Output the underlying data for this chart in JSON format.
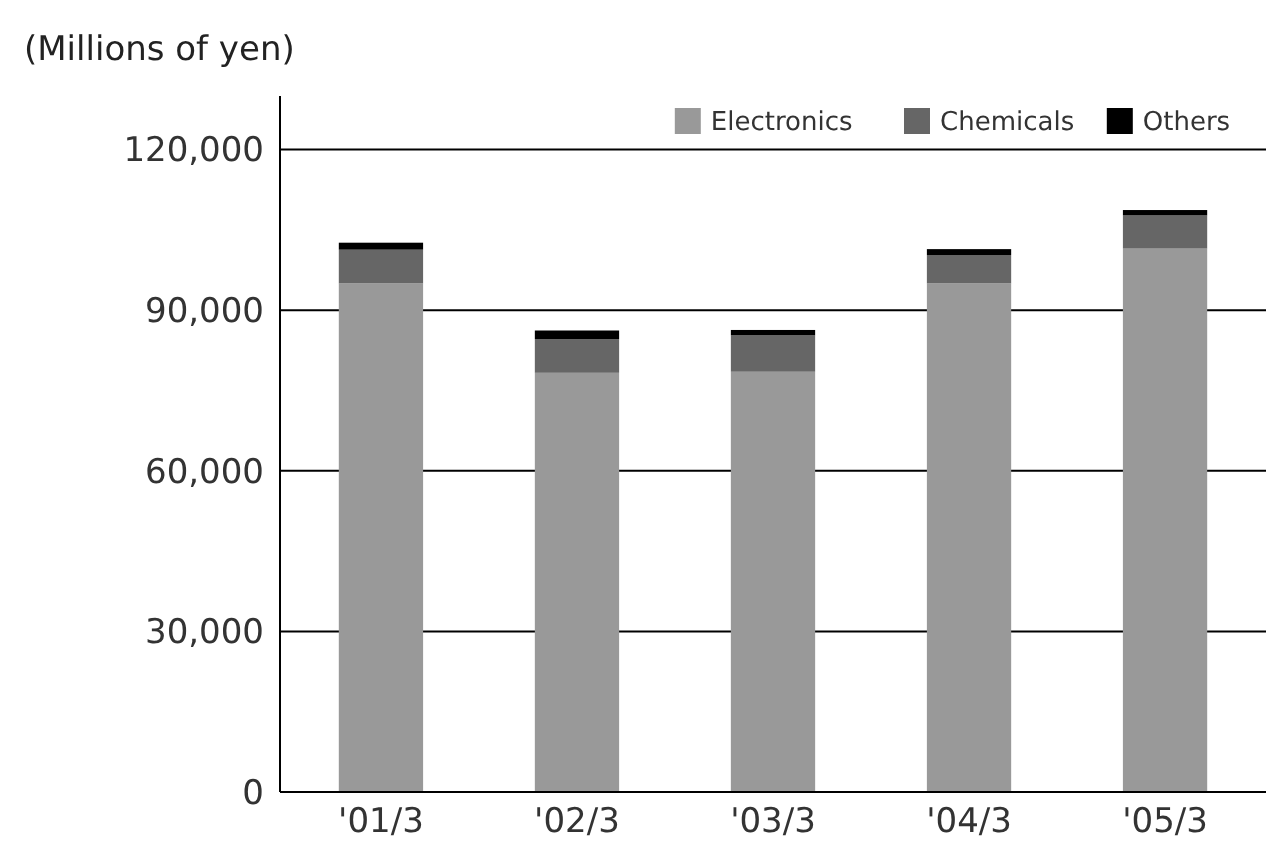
{
  "chart_data": {
    "type": "bar",
    "ylabel": "(Millions of yen)",
    "categories": [
      "'01/3",
      "'02/3",
      "'03/3",
      "'04/3",
      "'05/3"
    ],
    "stacked": true,
    "series": [
      {
        "name": "Electronics",
        "color": "#999999",
        "values": [
          95000,
          78300,
          78500,
          95000,
          101500
        ]
      },
      {
        "name": "Chemicals",
        "color": "#666666",
        "values": [
          6300,
          6300,
          6800,
          5300,
          6200
        ]
      },
      {
        "name": "Others",
        "color": "#000000",
        "values": [
          1300,
          1600,
          1000,
          1100,
          1000
        ]
      }
    ],
    "ylim": [
      0,
      130000
    ],
    "yticks": [
      {
        "value": 0,
        "label": "0"
      },
      {
        "value": 30000,
        "label": "30,000"
      },
      {
        "value": 60000,
        "label": "60,000"
      },
      {
        "value": 90000,
        "label": "90,000"
      },
      {
        "value": 120000,
        "label": "120,000"
      }
    ],
    "grid": "y",
    "legend": "top right"
  }
}
